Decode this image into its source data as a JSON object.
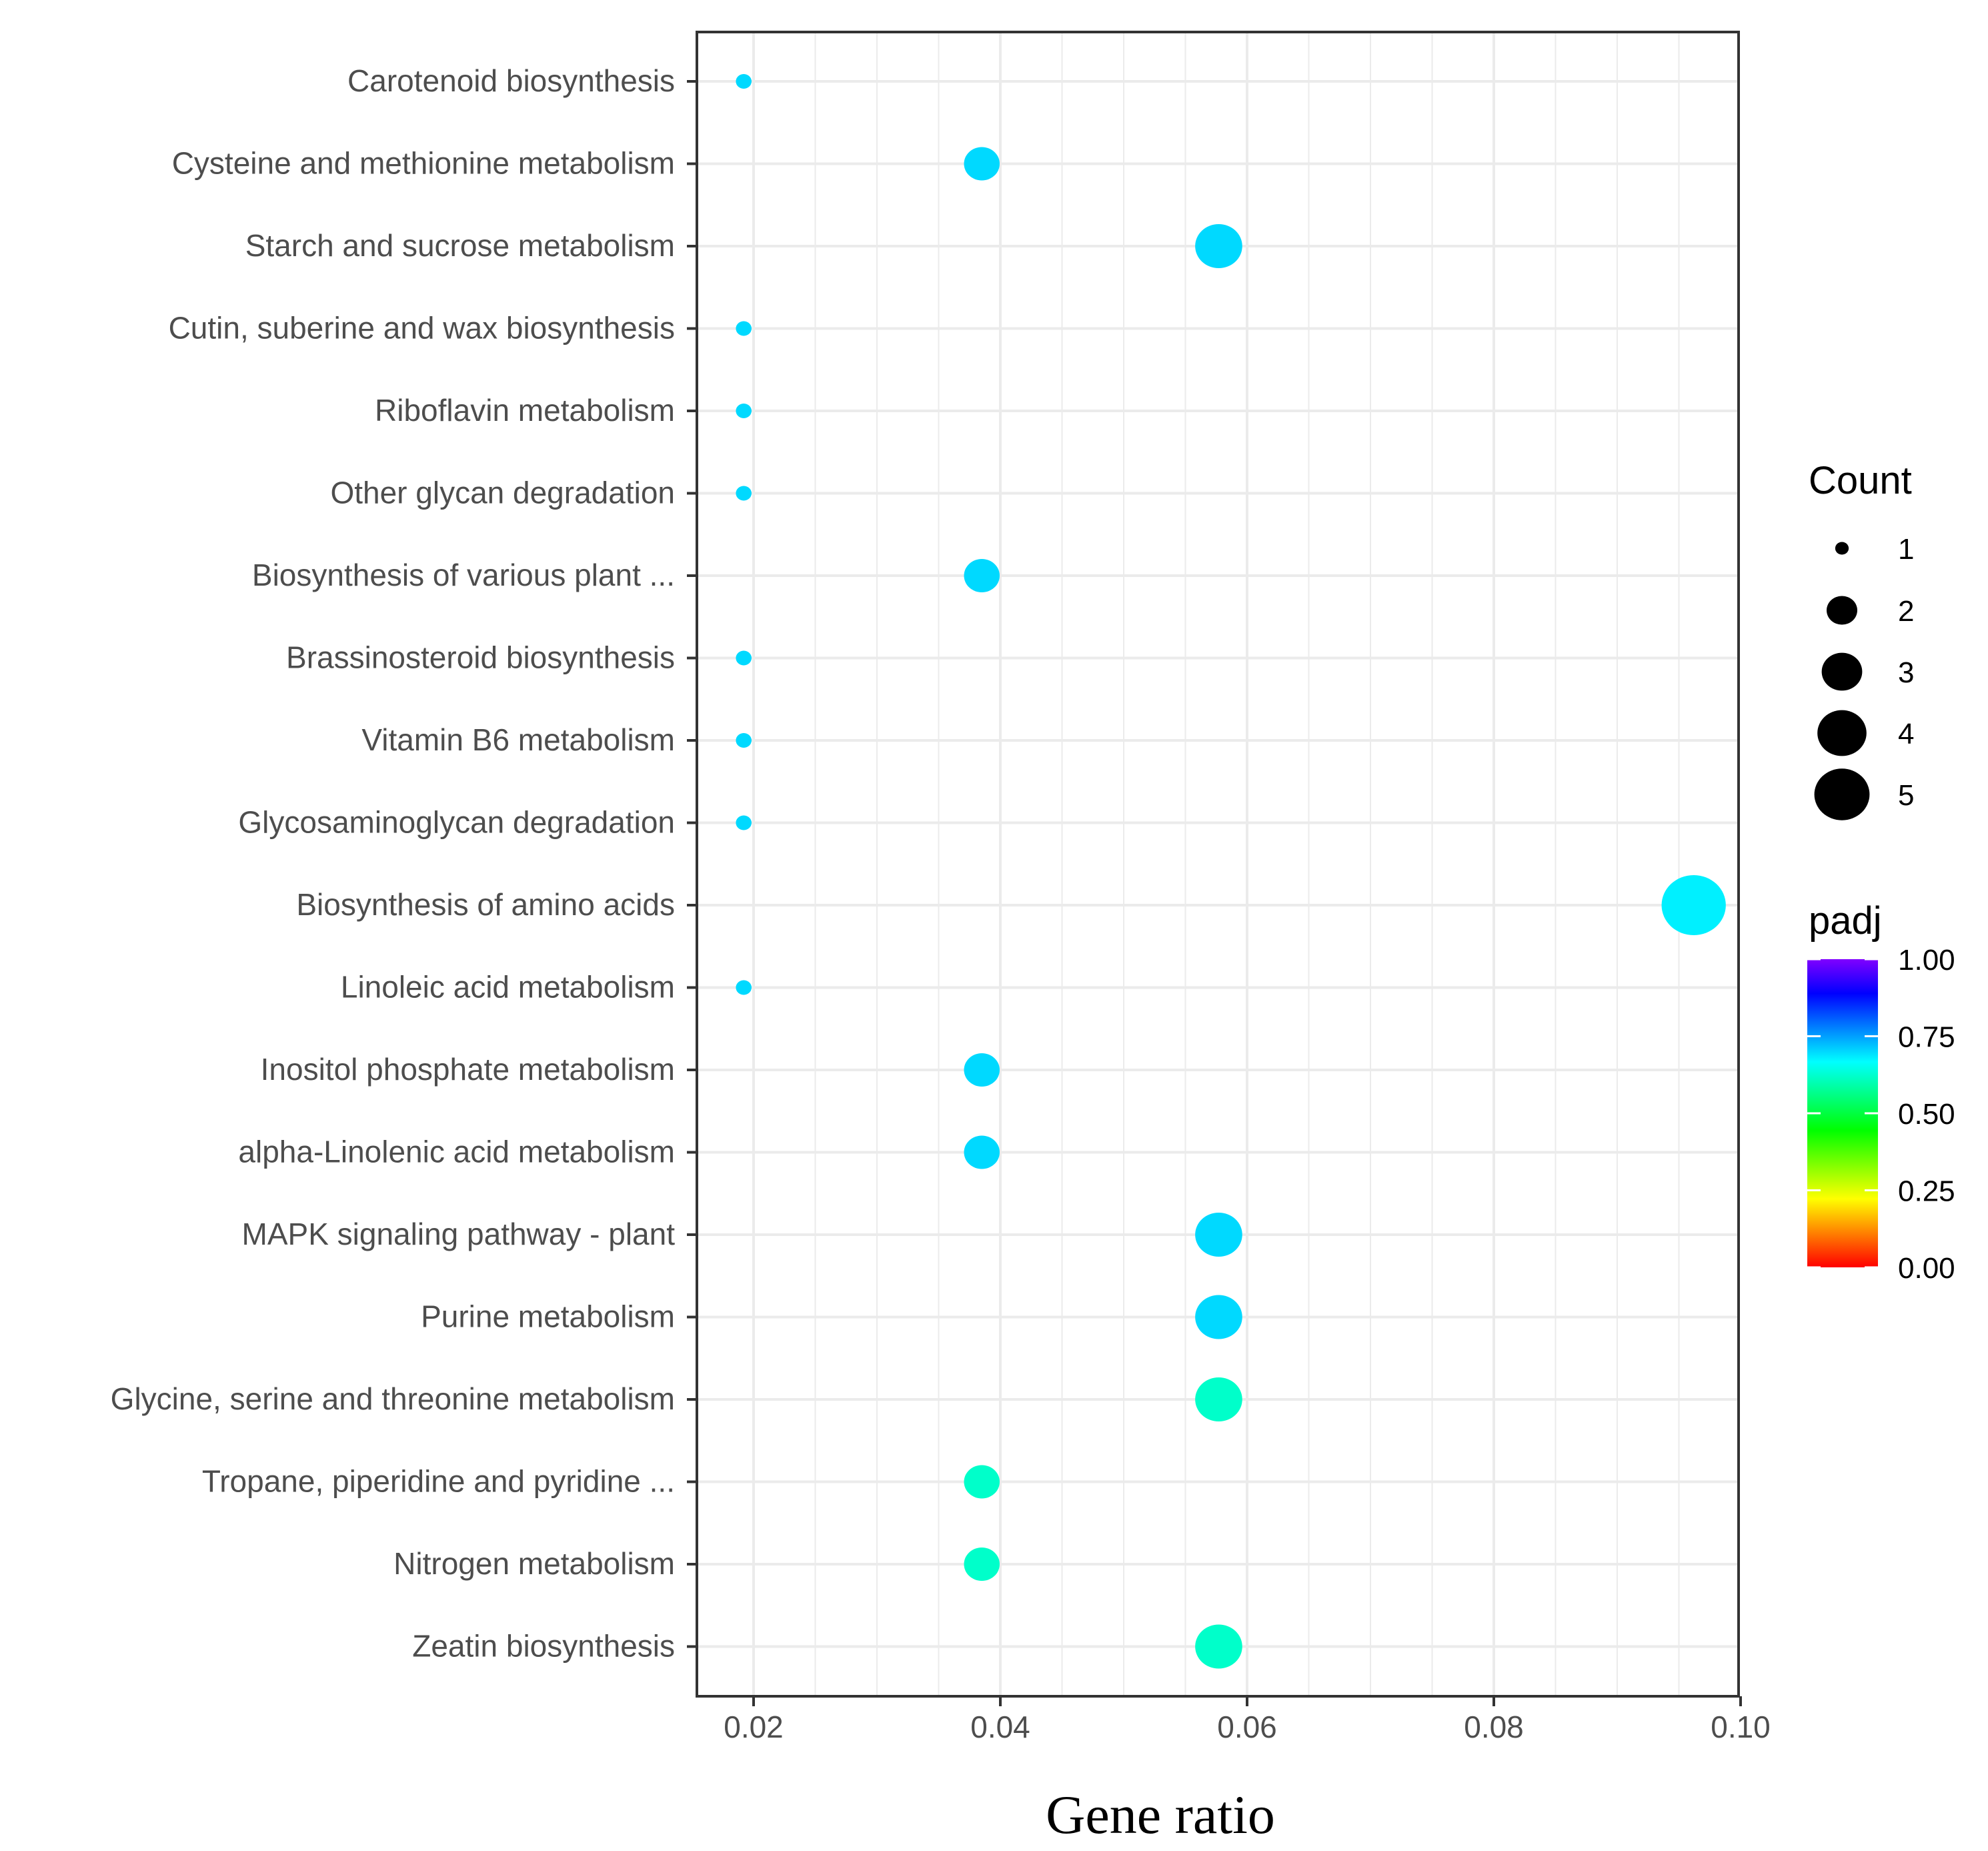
{
  "chart_data": {
    "type": "scatter",
    "title": "",
    "xlabel": "Gene ratio",
    "ylabel": "",
    "xlim": [
      0.0155,
      0.1
    ],
    "xticks": [
      0.02,
      0.04,
      0.06,
      0.08,
      0.1
    ],
    "xtick_labels": [
      "0.02",
      "0.04",
      "0.06",
      "0.08",
      "0.10"
    ],
    "grid": true,
    "categories": [
      "Carotenoid biosynthesis",
      "Cysteine and methionine metabolism",
      "Starch and sucrose metabolism",
      "Cutin, suberine and wax biosynthesis",
      "Riboflavin metabolism",
      "Other glycan degradation",
      "Biosynthesis of various plant ...",
      "Brassinosteroid biosynthesis",
      "Vitamin B6 metabolism",
      "Glycosaminoglycan degradation",
      "Biosynthesis of amino acids",
      "Linoleic acid metabolism",
      "Inositol phosphate metabolism",
      "alpha-Linolenic acid metabolism",
      "MAPK signaling pathway - plant",
      "Purine metabolism",
      "Glycine, serine and threonine metabolism",
      "Tropane, piperidine and pyridine ...",
      "Nitrogen metabolism",
      "Zeatin biosynthesis"
    ],
    "points": [
      {
        "category": "Carotenoid biosynthesis",
        "gene_ratio": 0.0192,
        "count": 1,
        "padj": 0.7
      },
      {
        "category": "Cysteine and methionine metabolism",
        "gene_ratio": 0.0385,
        "count": 2,
        "padj": 0.7
      },
      {
        "category": "Starch and sucrose metabolism",
        "gene_ratio": 0.0577,
        "count": 3,
        "padj": 0.7
      },
      {
        "category": "Cutin, suberine and wax biosynthesis",
        "gene_ratio": 0.0192,
        "count": 1,
        "padj": 0.7
      },
      {
        "category": "Riboflavin metabolism",
        "gene_ratio": 0.0192,
        "count": 1,
        "padj": 0.7
      },
      {
        "category": "Other glycan degradation",
        "gene_ratio": 0.0192,
        "count": 1,
        "padj": 0.7
      },
      {
        "category": "Biosynthesis of various plant ...",
        "gene_ratio": 0.0385,
        "count": 2,
        "padj": 0.7
      },
      {
        "category": "Brassinosteroid biosynthesis",
        "gene_ratio": 0.0192,
        "count": 1,
        "padj": 0.7
      },
      {
        "category": "Vitamin B6 metabolism",
        "gene_ratio": 0.0192,
        "count": 1,
        "padj": 0.7
      },
      {
        "category": "Glycosaminoglycan degradation",
        "gene_ratio": 0.0192,
        "count": 1,
        "padj": 0.7
      },
      {
        "category": "Biosynthesis of amino acids",
        "gene_ratio": 0.0962,
        "count": 5,
        "padj": 0.68
      },
      {
        "category": "Linoleic acid metabolism",
        "gene_ratio": 0.0192,
        "count": 1,
        "padj": 0.7
      },
      {
        "category": "Inositol phosphate metabolism",
        "gene_ratio": 0.0385,
        "count": 2,
        "padj": 0.7
      },
      {
        "category": "alpha-Linolenic acid metabolism",
        "gene_ratio": 0.0385,
        "count": 2,
        "padj": 0.7
      },
      {
        "category": "MAPK signaling pathway - plant",
        "gene_ratio": 0.0577,
        "count": 3,
        "padj": 0.7
      },
      {
        "category": "Purine metabolism",
        "gene_ratio": 0.0577,
        "count": 3,
        "padj": 0.7
      },
      {
        "category": "Glycine, serine and threonine metabolism",
        "gene_ratio": 0.0577,
        "count": 3,
        "padj": 0.62
      },
      {
        "category": "Tropane, piperidine and pyridine ...",
        "gene_ratio": 0.0385,
        "count": 2,
        "padj": 0.62
      },
      {
        "category": "Nitrogen metabolism",
        "gene_ratio": 0.0385,
        "count": 2,
        "padj": 0.62
      },
      {
        "category": "Zeatin biosynthesis",
        "gene_ratio": 0.0577,
        "count": 3,
        "padj": 0.62
      }
    ],
    "size_legend": {
      "title": "Count",
      "values": [
        1,
        2,
        3,
        4,
        5
      ],
      "labels": [
        "1",
        "2",
        "3",
        "4",
        "5"
      ]
    },
    "color_legend": {
      "title": "padj",
      "range": [
        0.0,
        1.0
      ],
      "ticks": [
        1.0,
        0.75,
        0.5,
        0.25,
        0.0
      ],
      "labels": [
        "1.00",
        "0.75",
        "0.50",
        "0.25",
        "0.00"
      ],
      "colormap": [
        "#ff0000",
        "#ff8000",
        "#ffff00",
        "#80ff00",
        "#00ff00",
        "#00ff80",
        "#00ffff",
        "#0080ff",
        "#0000ff",
        "#8000ff"
      ]
    }
  }
}
